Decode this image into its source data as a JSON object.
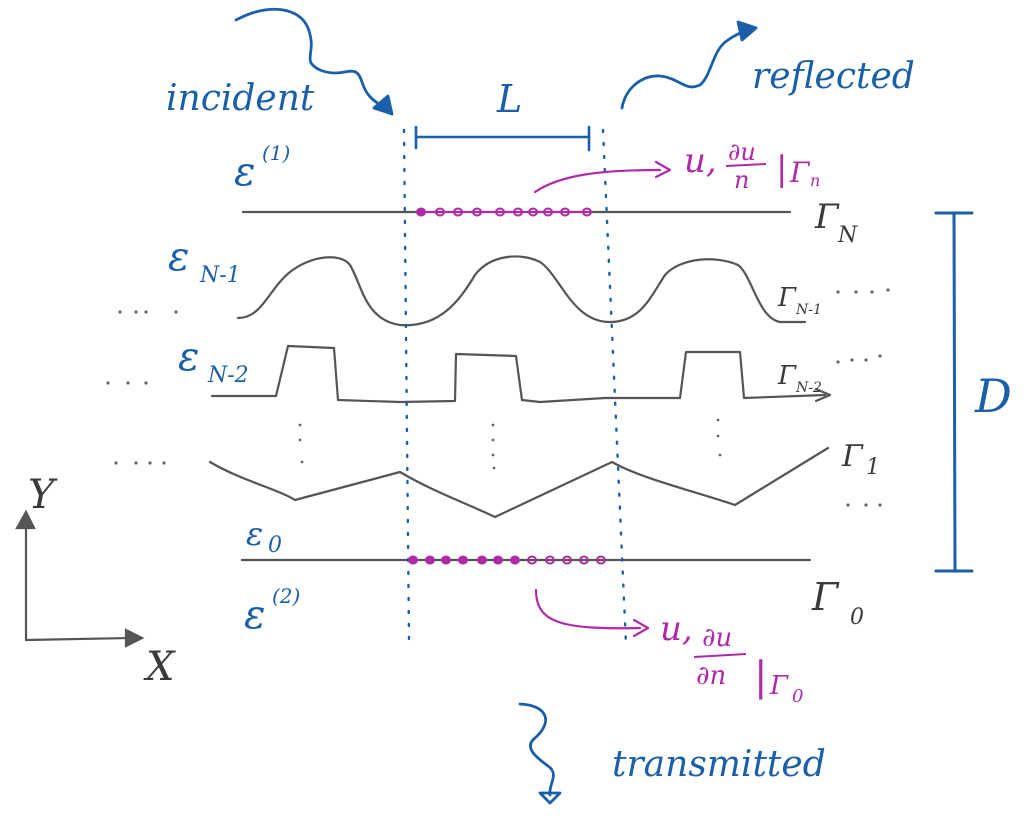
{
  "labels": {
    "incident": "incident",
    "reflected": "reflected",
    "transmitted": "transmitted",
    "period": "L",
    "thickness": "D",
    "eps_top": "ε",
    "eps_top_sup": "(1)",
    "eps_bottom": "ε",
    "eps_bottom_sup": "(2)",
    "eps_n1": "ε",
    "eps_n1_sub": "N-1",
    "eps_n2": "ε",
    "eps_n2_sub": "N-2",
    "eps_0": "ε",
    "eps_0_sub": "0",
    "gamma_N": "Γ",
    "gamma_N_sub": "N",
    "gamma_N1": "Γ",
    "gamma_N1_sub": "N-1",
    "gamma_N2": "Γ",
    "gamma_N2_sub": "N-2",
    "gamma_1": "Γ",
    "gamma_1_sub": "1",
    "gamma_0": "Γ",
    "gamma_0_sub": "0",
    "axis_x": "X",
    "axis_y": "Y",
    "bc_top_u": "u,",
    "bc_top_num": "∂u",
    "bc_top_den": "n",
    "bc_top_bar": "|",
    "bc_top_gamma": "Γ",
    "bc_top_gamma_sub": "n",
    "bc_bot_u": "u,",
    "bc_bot_num": "∂u",
    "bc_bot_den": "∂n",
    "bc_bot_bar": "|",
    "bc_bot_gamma": "Γ",
    "bc_bot_gamma_sub": "0",
    "ellipsis": "· · ·"
  },
  "colors": {
    "ink_blue": "#1a5fa8",
    "ink_magenta": "#b02aa8",
    "ink_gray": "#555555"
  }
}
